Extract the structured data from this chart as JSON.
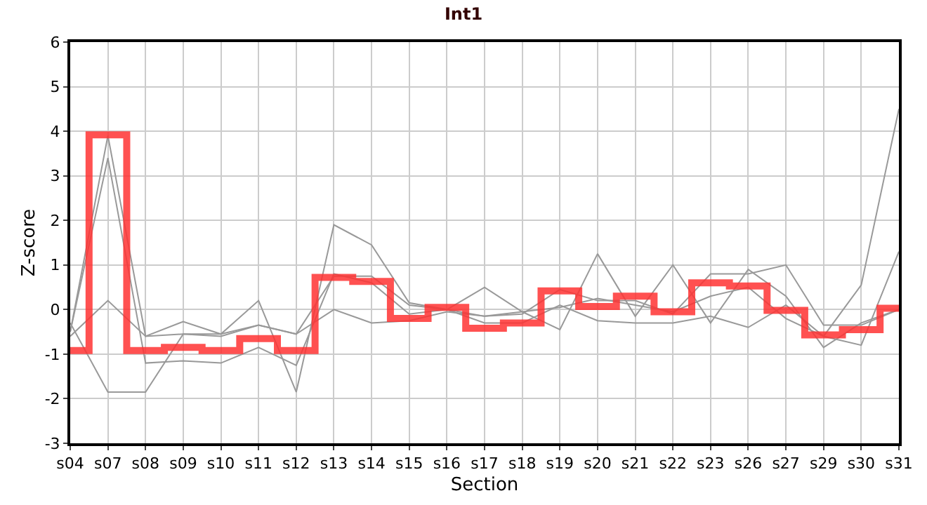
{
  "chart_data": {
    "type": "line",
    "title": "Int1",
    "xlabel": "Section",
    "ylabel": "Z-score",
    "categories": [
      "s04",
      "s07",
      "s08",
      "s09",
      "s10",
      "s11",
      "s12",
      "s13",
      "s14",
      "s15",
      "s16",
      "s17",
      "s18",
      "s19",
      "s20",
      "s21",
      "s22",
      "s23",
      "s26",
      "s27",
      "s29",
      "s30",
      "s31"
    ],
    "series": [
      {
        "color": "#999999",
        "values": [
          -0.5,
          3.9,
          -0.6,
          -0.55,
          -0.55,
          -0.35,
          -0.55,
          0.75,
          0.75,
          0.1,
          0.0,
          -0.15,
          -0.1,
          0.45,
          0.2,
          0.2,
          -0.1,
          0.8,
          0.8,
          1.0,
          -0.35,
          -0.35,
          0.0
        ]
      },
      {
        "color": "#999999",
        "values": [
          -0.5,
          3.4,
          -1.2,
          -1.15,
          -1.2,
          -0.85,
          -1.25,
          0.8,
          0.6,
          -0.1,
          0.0,
          -0.3,
          -0.3,
          0.1,
          -0.25,
          -0.3,
          -0.3,
          -0.15,
          -0.4,
          0.1,
          -0.6,
          -0.8,
          1.3
        ]
      },
      {
        "color": "#999999",
        "values": [
          -0.6,
          0.2,
          -0.6,
          -0.27,
          -0.55,
          0.2,
          -1.85,
          1.9,
          1.45,
          0.15,
          0.0,
          0.5,
          -0.05,
          -0.45,
          1.25,
          -0.15,
          1.0,
          -0.3,
          0.9,
          0.3,
          -0.85,
          -0.3,
          0.0
        ]
      },
      {
        "color": "#999999",
        "values": [
          -0.3,
          -1.85,
          -1.85,
          -0.55,
          -0.6,
          -0.35,
          -0.55,
          0.0,
          -0.3,
          -0.25,
          -0.05,
          -0.15,
          -0.05,
          0.05,
          0.25,
          0.1,
          -0.05,
          0.3,
          0.5,
          -0.2,
          -0.6,
          0.55,
          4.5
        ]
      },
      {
        "type": "step",
        "color": "#ff3333",
        "values": [
          -0.92,
          3.92,
          -0.92,
          -0.85,
          -0.92,
          -0.65,
          -0.92,
          0.72,
          0.63,
          -0.2,
          0.05,
          -0.42,
          -0.3,
          0.42,
          0.07,
          0.3,
          -0.05,
          0.6,
          0.53,
          -0.02,
          -0.57,
          -0.45,
          0.03
        ]
      }
    ],
    "ylim": [
      -3,
      6
    ],
    "yticks": [
      -3,
      -2,
      -1,
      0,
      1,
      2,
      3,
      4,
      5,
      6
    ],
    "grid": true,
    "marker": "none"
  }
}
